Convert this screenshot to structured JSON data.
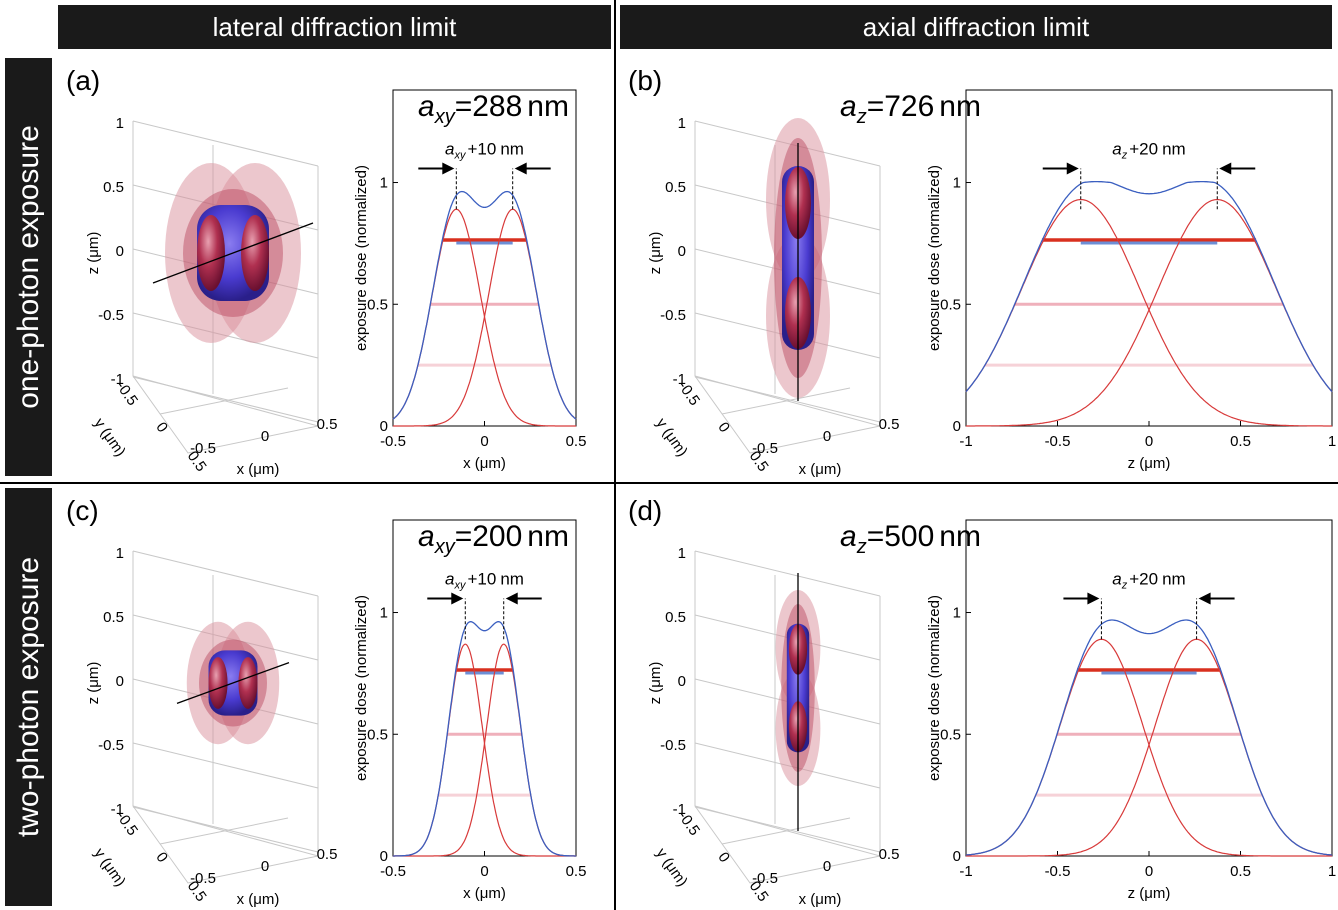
{
  "headers": {
    "lateral": "lateral diffraction limit",
    "axial": "axial diffraction limit"
  },
  "rows": {
    "one": "one-photon exposure",
    "two": "two-photon exposure"
  },
  "colors": {
    "sum": "#3b5fc0",
    "single": "#d83a3a",
    "thr_red": "#d9301f",
    "thr_blue": "#6d8fd6",
    "thr_pink": "#efb0bb",
    "thr_lightpink": "#f6d2d8",
    "iso_outer": "#d98f9c",
    "iso_inner": "#b8425a",
    "core": "#4a3bd0"
  },
  "panels": [
    {
      "id": "a",
      "label": "(a)",
      "param_sym": "a",
      "param_sub": "xy",
      "param_val": "=288",
      "param_unit": "nm",
      "shift_label": "+10",
      "shift_unit": "nm",
      "chart3d": {
        "ticks_z": [
          "1",
          "0.5",
          "0",
          "-0.5",
          "-1"
        ],
        "ticks_y": [
          "-0.5",
          "0",
          "0.5"
        ],
        "ticks_x": [
          "-0.5",
          "0",
          "0.5"
        ],
        "xlabel": "x (μm)",
        "ylabel": "y (μm)",
        "zlabel": "z (μm)"
      },
      "chart_data": {
        "type": "line",
        "xlabel": "x (μm)",
        "ylabel": "exposure dose (normalized)",
        "xlim": [
          -0.5,
          0.5
        ],
        "ylim": [
          0,
          1.38
        ],
        "xticks": [
          "-0.5",
          "0",
          "0.5"
        ],
        "yticks": [
          "0",
          "0.5",
          "1"
        ],
        "series": [
          {
            "peak_centers": [
              -0.154,
              0.154
            ],
            "peak_height": 0.89,
            "fwhm": 0.31
          }
        ],
        "thresholds": [
          0.76,
          0.5,
          0.25
        ]
      }
    },
    {
      "id": "b",
      "label": "(b)",
      "param_sym": "a",
      "param_sub": "z",
      "param_val": "=726",
      "param_unit": "nm",
      "shift_label": "+20",
      "shift_unit": "nm",
      "chart3d": {
        "ticks_z": [
          "1",
          "0.5",
          "0",
          "-0.5",
          "-1"
        ],
        "ticks_y": [
          "-0.5",
          "0",
          "0.5"
        ],
        "ticks_x": [
          "-0.5",
          "0",
          "0.5"
        ],
        "xlabel": "x (μm)",
        "ylabel": "y (μm)",
        "zlabel": "z (μm)"
      },
      "chart_data": {
        "type": "line",
        "xlabel": "z (μm)",
        "ylabel": "exposure dose (normalized)",
        "xlim": [
          -1,
          1
        ],
        "ylim": [
          0,
          1.38
        ],
        "xticks": [
          "-1",
          "-0.5",
          "0",
          "0.5",
          "1"
        ],
        "yticks": [
          "0",
          "0.5",
          "1"
        ],
        "series": [
          {
            "peak_centers": [
              -0.373,
              0.373
            ],
            "peak_height": 0.93,
            "fwhm": 0.76
          }
        ],
        "thresholds": [
          0.76,
          0.5,
          0.25
        ]
      }
    },
    {
      "id": "c",
      "label": "(c)",
      "param_sym": "a",
      "param_sub": "xy",
      "param_val": "=200",
      "param_unit": "nm",
      "shift_label": "+10",
      "shift_unit": "nm",
      "chart3d": {
        "ticks_z": [
          "1",
          "0.5",
          "0",
          "-0.5",
          "-1"
        ],
        "ticks_y": [
          "-0.5",
          "0",
          "0.5"
        ],
        "ticks_x": [
          "-0.5",
          "0",
          "0.5"
        ],
        "xlabel": "x (μm)",
        "ylabel": "y (μm)",
        "zlabel": "z (μm)"
      },
      "chart_data": {
        "type": "line",
        "xlabel": "x (μm)",
        "ylabel": "exposure dose (normalized)",
        "xlim": [
          -0.5,
          0.5
        ],
        "ylim": [
          0,
          1.38
        ],
        "xticks": [
          "-0.5",
          "0",
          "0.5"
        ],
        "yticks": [
          "0",
          "0.5",
          "1"
        ],
        "series": [
          {
            "peak_centers": [
              -0.105,
              0.105
            ],
            "peak_height": 0.87,
            "fwhm": 0.22
          }
        ],
        "thresholds": [
          0.76,
          0.5,
          0.25
        ]
      }
    },
    {
      "id": "d",
      "label": "(d)",
      "param_sym": "a",
      "param_sub": "z",
      "param_val": "=500",
      "param_unit": "nm",
      "shift_label": "+20",
      "shift_unit": "nm",
      "chart3d": {
        "ticks_z": [
          "1",
          "0.5",
          "0",
          "-0.5",
          "-1"
        ],
        "ticks_y": [
          "-0.5",
          "0",
          "0.5"
        ],
        "ticks_x": [
          "-0.5",
          "0",
          "0.5"
        ],
        "xlabel": "x (μm)",
        "ylabel": "y (μm)",
        "zlabel": "z (μm)"
      },
      "chart_data": {
        "type": "line",
        "xlabel": "z (μm)",
        "ylabel": "exposure dose (normalized)",
        "xlim": [
          -1,
          1
        ],
        "ylim": [
          0,
          1.38
        ],
        "xticks": [
          "-1",
          "-0.5",
          "0",
          "0.5",
          "1"
        ],
        "yticks": [
          "0",
          "0.5",
          "1"
        ],
        "series": [
          {
            "peak_centers": [
              -0.26,
              0.26
            ],
            "peak_height": 0.89,
            "fwhm": 0.53
          }
        ],
        "thresholds": [
          0.76,
          0.5,
          0.25
        ]
      }
    }
  ]
}
